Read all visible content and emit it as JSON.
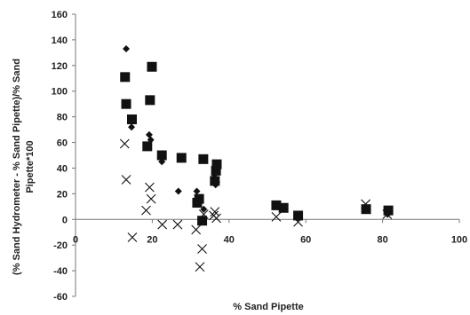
{
  "chart_data": {
    "type": "scatter",
    "title": "",
    "xlabel": "% Sand  Pipette",
    "ylabel_line1": "(% Sand Hydrometer - % Sand Pipette)/% Sand",
    "ylabel_line2": "Pipette*100",
    "xlim": [
      0,
      100
    ],
    "ylim": [
      -60,
      160
    ],
    "xticks": [
      0,
      20,
      40,
      60,
      80,
      100
    ],
    "yticks": [
      -60,
      -40,
      -20,
      0,
      20,
      40,
      60,
      80,
      100,
      120,
      140,
      160
    ],
    "grid": false,
    "legend": "none",
    "series": [
      {
        "marker": "diamond",
        "color": "#111111",
        "points": [
          [
            13.2,
            133
          ],
          [
            14.6,
            72
          ],
          [
            19.2,
            66
          ],
          [
            19.6,
            62
          ],
          [
            22.5,
            45
          ],
          [
            26.8,
            22
          ],
          [
            31.6,
            22
          ],
          [
            32.6,
            14
          ],
          [
            33.4,
            8
          ],
          [
            36.2,
            35
          ],
          [
            36.5,
            27
          ],
          [
            36.8,
            29
          ],
          [
            52.7,
            10
          ],
          [
            57.8,
            1
          ],
          [
            81.3,
            4
          ]
        ]
      },
      {
        "marker": "square",
        "color": "#111111",
        "points": [
          [
            12.9,
            111
          ],
          [
            13.2,
            90
          ],
          [
            14.7,
            78
          ],
          [
            18.7,
            57
          ],
          [
            19.4,
            93
          ],
          [
            19.9,
            119
          ],
          [
            22.5,
            50
          ],
          [
            27.6,
            48
          ],
          [
            31.7,
            13
          ],
          [
            32.2,
            16
          ],
          [
            33.3,
            47
          ],
          [
            33.0,
            -1
          ],
          [
            36.3,
            30
          ],
          [
            36.6,
            38
          ],
          [
            36.8,
            43
          ],
          [
            52.3,
            11
          ],
          [
            54.2,
            9
          ],
          [
            58.0,
            3
          ],
          [
            75.7,
            8
          ],
          [
            81.5,
            7
          ]
        ]
      },
      {
        "marker": "x",
        "color": "#111111",
        "points": [
          [
            12.8,
            59
          ],
          [
            13.2,
            31
          ],
          [
            14.8,
            -14
          ],
          [
            18.4,
            7
          ],
          [
            19.3,
            25
          ],
          [
            19.7,
            16
          ],
          [
            22.6,
            -4
          ],
          [
            26.6,
            -4
          ],
          [
            31.4,
            -8
          ],
          [
            32.4,
            -37
          ],
          [
            33.0,
            -23
          ],
          [
            33.4,
            4
          ],
          [
            36.0,
            3
          ],
          [
            36.3,
            6
          ],
          [
            36.7,
            1
          ],
          [
            52.3,
            2
          ],
          [
            58.0,
            -2
          ],
          [
            75.6,
            12
          ],
          [
            81.2,
            4
          ]
        ]
      }
    ]
  }
}
